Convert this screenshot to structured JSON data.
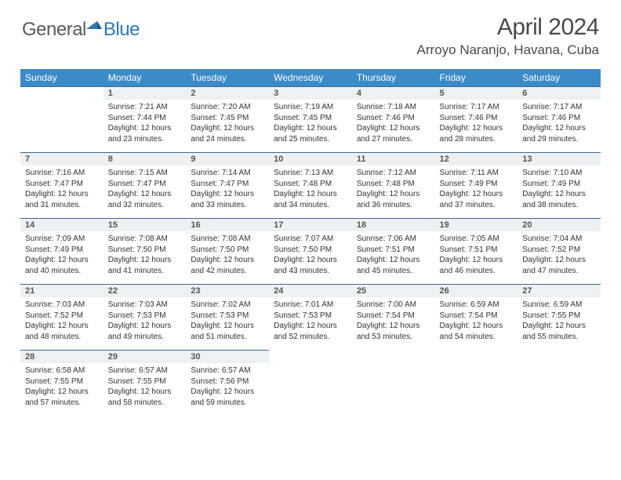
{
  "logo": {
    "general": "General",
    "blue": "Blue"
  },
  "title": "April 2024",
  "location": "Arroyo Naranjo, Havana, Cuba",
  "colors": {
    "header_bg": "#3b8bc8",
    "header_text": "#ffffff",
    "daynum_bg": "#eef1f3",
    "border": "#3b6a94",
    "logo_gray": "#5a5a5a",
    "logo_blue": "#2b78b5"
  },
  "weekdays": [
    "Sunday",
    "Monday",
    "Tuesday",
    "Wednesday",
    "Thursday",
    "Friday",
    "Saturday"
  ],
  "weeks": [
    [
      null,
      {
        "n": "1",
        "sr": "7:21 AM",
        "ss": "7:44 PM",
        "dl": "12 hours and 23 minutes."
      },
      {
        "n": "2",
        "sr": "7:20 AM",
        "ss": "7:45 PM",
        "dl": "12 hours and 24 minutes."
      },
      {
        "n": "3",
        "sr": "7:19 AM",
        "ss": "7:45 PM",
        "dl": "12 hours and 25 minutes."
      },
      {
        "n": "4",
        "sr": "7:18 AM",
        "ss": "7:46 PM",
        "dl": "12 hours and 27 minutes."
      },
      {
        "n": "5",
        "sr": "7:17 AM",
        "ss": "7:46 PM",
        "dl": "12 hours and 28 minutes."
      },
      {
        "n": "6",
        "sr": "7:17 AM",
        "ss": "7:46 PM",
        "dl": "12 hours and 29 minutes."
      }
    ],
    [
      {
        "n": "7",
        "sr": "7:16 AM",
        "ss": "7:47 PM",
        "dl": "12 hours and 31 minutes."
      },
      {
        "n": "8",
        "sr": "7:15 AM",
        "ss": "7:47 PM",
        "dl": "12 hours and 32 minutes."
      },
      {
        "n": "9",
        "sr": "7:14 AM",
        "ss": "7:47 PM",
        "dl": "12 hours and 33 minutes."
      },
      {
        "n": "10",
        "sr": "7:13 AM",
        "ss": "7:48 PM",
        "dl": "12 hours and 34 minutes."
      },
      {
        "n": "11",
        "sr": "7:12 AM",
        "ss": "7:48 PM",
        "dl": "12 hours and 36 minutes."
      },
      {
        "n": "12",
        "sr": "7:11 AM",
        "ss": "7:49 PM",
        "dl": "12 hours and 37 minutes."
      },
      {
        "n": "13",
        "sr": "7:10 AM",
        "ss": "7:49 PM",
        "dl": "12 hours and 38 minutes."
      }
    ],
    [
      {
        "n": "14",
        "sr": "7:09 AM",
        "ss": "7:49 PM",
        "dl": "12 hours and 40 minutes."
      },
      {
        "n": "15",
        "sr": "7:08 AM",
        "ss": "7:50 PM",
        "dl": "12 hours and 41 minutes."
      },
      {
        "n": "16",
        "sr": "7:08 AM",
        "ss": "7:50 PM",
        "dl": "12 hours and 42 minutes."
      },
      {
        "n": "17",
        "sr": "7:07 AM",
        "ss": "7:50 PM",
        "dl": "12 hours and 43 minutes."
      },
      {
        "n": "18",
        "sr": "7:06 AM",
        "ss": "7:51 PM",
        "dl": "12 hours and 45 minutes."
      },
      {
        "n": "19",
        "sr": "7:05 AM",
        "ss": "7:51 PM",
        "dl": "12 hours and 46 minutes."
      },
      {
        "n": "20",
        "sr": "7:04 AM",
        "ss": "7:52 PM",
        "dl": "12 hours and 47 minutes."
      }
    ],
    [
      {
        "n": "21",
        "sr": "7:03 AM",
        "ss": "7:52 PM",
        "dl": "12 hours and 48 minutes."
      },
      {
        "n": "22",
        "sr": "7:03 AM",
        "ss": "7:53 PM",
        "dl": "12 hours and 49 minutes."
      },
      {
        "n": "23",
        "sr": "7:02 AM",
        "ss": "7:53 PM",
        "dl": "12 hours and 51 minutes."
      },
      {
        "n": "24",
        "sr": "7:01 AM",
        "ss": "7:53 PM",
        "dl": "12 hours and 52 minutes."
      },
      {
        "n": "25",
        "sr": "7:00 AM",
        "ss": "7:54 PM",
        "dl": "12 hours and 53 minutes."
      },
      {
        "n": "26",
        "sr": "6:59 AM",
        "ss": "7:54 PM",
        "dl": "12 hours and 54 minutes."
      },
      {
        "n": "27",
        "sr": "6:59 AM",
        "ss": "7:55 PM",
        "dl": "12 hours and 55 minutes."
      }
    ],
    [
      {
        "n": "28",
        "sr": "6:58 AM",
        "ss": "7:55 PM",
        "dl": "12 hours and 57 minutes."
      },
      {
        "n": "29",
        "sr": "6:57 AM",
        "ss": "7:55 PM",
        "dl": "12 hours and 58 minutes."
      },
      {
        "n": "30",
        "sr": "6:57 AM",
        "ss": "7:56 PM",
        "dl": "12 hours and 59 minutes."
      },
      null,
      null,
      null,
      null
    ]
  ],
  "labels": {
    "sunrise": "Sunrise: ",
    "sunset": "Sunset: ",
    "daylight": "Daylight: "
  }
}
